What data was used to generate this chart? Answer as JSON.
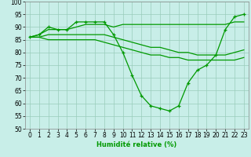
{
  "xlabel": "Humidité relative (%)",
  "xlim": [
    -0.5,
    23.5
  ],
  "ylim": [
    50,
    100
  ],
  "yticks": [
    50,
    55,
    60,
    65,
    70,
    75,
    80,
    85,
    90,
    95,
    100
  ],
  "xticks": [
    0,
    1,
    2,
    3,
    4,
    5,
    6,
    7,
    8,
    9,
    10,
    11,
    12,
    13,
    14,
    15,
    16,
    17,
    18,
    19,
    20,
    21,
    22,
    23
  ],
  "background_color": "#c8eee8",
  "grid_color": "#99ccbb",
  "line_color": "#009900",
  "lines": [
    {
      "x": [
        0,
        1,
        2,
        3,
        4,
        5,
        6,
        7,
        8,
        9,
        10,
        11,
        12,
        13,
        14,
        15,
        16,
        17,
        18,
        19,
        20,
        21,
        22,
        23
      ],
      "y": [
        86,
        87,
        90,
        89,
        89,
        92,
        92,
        92,
        92,
        87,
        80,
        71,
        63,
        59,
        58,
        57,
        59,
        68,
        73,
        75,
        79,
        89,
        94,
        95
      ],
      "marker": true
    },
    {
      "x": [
        0,
        1,
        2,
        3,
        4,
        5,
        6,
        7,
        8,
        9,
        10,
        11,
        12,
        13,
        14,
        15,
        16,
        17,
        18,
        19,
        20,
        21,
        22,
        23
      ],
      "y": [
        86,
        87,
        89,
        89,
        89,
        90,
        91,
        91,
        91,
        90,
        91,
        91,
        91,
        91,
        91,
        91,
        91,
        91,
        91,
        91,
        91,
        91,
        92,
        92
      ],
      "marker": false
    },
    {
      "x": [
        0,
        1,
        2,
        3,
        4,
        5,
        6,
        7,
        8,
        9,
        10,
        11,
        12,
        13,
        14,
        15,
        16,
        17,
        18,
        19,
        20,
        21,
        22,
        23
      ],
      "y": [
        86,
        86,
        87,
        87,
        87,
        87,
        87,
        87,
        87,
        86,
        85,
        84,
        83,
        82,
        82,
        81,
        80,
        80,
        79,
        79,
        79,
        79,
        80,
        81
      ],
      "marker": false
    },
    {
      "x": [
        0,
        1,
        2,
        3,
        4,
        5,
        6,
        7,
        8,
        9,
        10,
        11,
        12,
        13,
        14,
        15,
        16,
        17,
        18,
        19,
        20,
        21,
        22,
        23
      ],
      "y": [
        86,
        86,
        85,
        85,
        85,
        85,
        85,
        85,
        84,
        83,
        82,
        81,
        80,
        79,
        79,
        78,
        78,
        77,
        77,
        77,
        77,
        77,
        77,
        78
      ],
      "marker": false
    }
  ],
  "tick_fontsize": 5.5,
  "xlabel_fontsize": 6,
  "linewidth": 0.9
}
